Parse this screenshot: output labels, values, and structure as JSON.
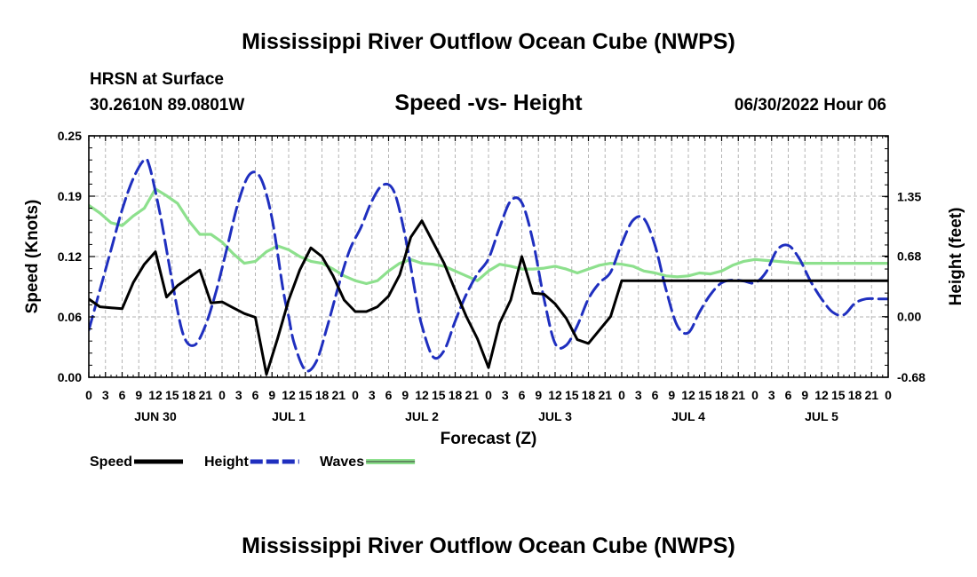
{
  "header": {
    "title": "Mississippi River Outflow Ocean Cube (NWPS)",
    "location_name": "HRSN at Surface",
    "coords": "30.2610N  89.0801W",
    "subtitle": "Speed -vs- Height",
    "datetime": "06/30/2022 Hour 06"
  },
  "footer": {
    "title": "Mississippi River Outflow Ocean Cube (NWPS)"
  },
  "chart_data": {
    "type": "line",
    "xlabel": "Forecast (Z)",
    "ylabel_left": "Speed (Knots)",
    "ylabel_right": "Height (feet)",
    "x_range_hours": [
      0,
      144
    ],
    "ylim_left": [
      0,
      0.25
    ],
    "ylim_right": [
      -0.68,
      2.03
    ],
    "left_ticks": [
      "0.00",
      "0.06",
      "0.12",
      "0.19",
      "0.25"
    ],
    "left_tick_values": [
      0,
      0.0625,
      0.125,
      0.1875,
      0.25
    ],
    "right_ticks": [
      "-0.68",
      "0.00",
      "0.68",
      "1.35"
    ],
    "right_tick_values": [
      -0.68,
      0.0,
      0.68,
      1.35
    ],
    "x_ticks": [
      "0",
      "3",
      "6",
      "9",
      "12",
      "15",
      "18",
      "21",
      "0",
      "3",
      "6",
      "9",
      "12",
      "15",
      "18",
      "21",
      "0",
      "3",
      "6",
      "9",
      "12",
      "15",
      "18",
      "21",
      "0",
      "3",
      "6",
      "9",
      "12",
      "15",
      "18",
      "21",
      "0",
      "3",
      "6",
      "9",
      "12",
      "15",
      "18",
      "21",
      "0",
      "3",
      "6",
      "9",
      "12",
      "15",
      "18",
      "21",
      "0"
    ],
    "day_labels": [
      "JUN 30",
      "JUL 1",
      "JUL 2",
      "JUL 3",
      "JUL 4",
      "JUL 5"
    ],
    "series": [
      {
        "name": "Speed",
        "axis": "left",
        "color": "#000000",
        "style": "solid",
        "x": [
          0,
          2,
          4,
          6,
          8,
          10,
          12,
          14,
          16,
          18,
          20,
          22,
          24,
          26,
          28,
          30,
          32,
          34,
          36,
          38,
          40,
          42,
          44,
          46,
          48,
          50,
          52,
          54,
          56,
          58,
          60,
          62,
          64,
          66,
          68,
          70,
          72,
          74,
          76,
          78,
          80,
          82,
          84,
          86,
          88,
          90,
          92,
          94,
          96,
          98,
          100,
          102,
          104,
          106,
          108,
          110,
          112,
          114,
          116,
          118,
          120,
          144
        ],
        "values": [
          0.081,
          0.073,
          0.072,
          0.071,
          0.098,
          0.117,
          0.13,
          0.083,
          0.095,
          0.103,
          0.111,
          0.077,
          0.078,
          0.072,
          0.066,
          0.062,
          0.003,
          0.04,
          0.08,
          0.111,
          0.134,
          0.125,
          0.105,
          0.08,
          0.068,
          0.068,
          0.073,
          0.084,
          0.106,
          0.145,
          0.162,
          0.14,
          0.118,
          0.09,
          0.063,
          0.04,
          0.01,
          0.056,
          0.08,
          0.125,
          0.087,
          0.086,
          0.076,
          0.061,
          0.039,
          0.035,
          0.049,
          0.063,
          0.1,
          0.1,
          0.1,
          0.1,
          0.1,
          0.1,
          0.1,
          0.1,
          0.1,
          0.1,
          0.1,
          0.1,
          0.1,
          0.1
        ]
      },
      {
        "name": "Height",
        "axis": "right",
        "color": "#1f2fbf",
        "style": "dashed",
        "x": [
          0,
          2,
          4,
          6,
          8,
          10,
          11,
          13,
          15,
          17,
          19,
          21,
          23,
          25,
          27,
          29,
          31,
          33,
          35,
          36,
          37,
          39,
          41,
          43,
          45,
          47,
          49,
          51,
          53,
          55,
          57,
          59,
          60,
          62,
          64,
          66,
          68,
          70,
          72,
          74,
          76,
          78,
          80,
          82,
          84,
          86,
          88,
          90,
          92,
          94,
          96,
          98,
          100,
          102,
          104,
          106,
          108,
          110,
          112,
          114,
          116,
          118,
          120,
          122,
          124,
          126,
          128,
          130,
          132,
          134,
          136,
          138,
          140,
          142,
          144
        ],
        "values": [
          -0.15,
          0.3,
          0.75,
          1.2,
          1.55,
          1.76,
          1.67,
          1.1,
          0.4,
          -0.2,
          -0.32,
          -0.1,
          0.3,
          0.8,
          1.3,
          1.6,
          1.55,
          1.1,
          0.3,
          0.0,
          -0.3,
          -0.6,
          -0.5,
          -0.1,
          0.35,
          0.75,
          1.0,
          1.3,
          1.48,
          1.4,
          0.9,
          0.2,
          -0.1,
          -0.45,
          -0.38,
          -0.05,
          0.25,
          0.48,
          0.65,
          1.0,
          1.3,
          1.28,
          0.85,
          0.2,
          -0.3,
          -0.32,
          -0.1,
          0.2,
          0.38,
          0.5,
          0.82,
          1.08,
          1.1,
          0.8,
          0.3,
          -0.1,
          -0.18,
          0.05,
          0.25,
          0.38,
          0.41,
          0.4,
          0.38,
          0.5,
          0.75,
          0.8,
          0.65,
          0.4,
          0.2,
          0.05,
          0.02,
          0.15,
          0.2,
          0.2,
          0.2
        ]
      },
      {
        "name": "Waves",
        "axis": "left",
        "color": "#8de08d",
        "style": "solid",
        "x": [
          0,
          2,
          4,
          6,
          8,
          10,
          12,
          14,
          16,
          18,
          20,
          22,
          24,
          26,
          28,
          30,
          32,
          34,
          36,
          38,
          40,
          42,
          44,
          46,
          48,
          50,
          52,
          54,
          56,
          58,
          60,
          62,
          64,
          66,
          68,
          70,
          72,
          74,
          76,
          78,
          80,
          82,
          84,
          86,
          88,
          90,
          92,
          94,
          96,
          98,
          100,
          102,
          104,
          106,
          108,
          110,
          112,
          114,
          116,
          118,
          120,
          122,
          124,
          126,
          128,
          130,
          132,
          134,
          136,
          138,
          140,
          142,
          144
        ],
        "values": [
          0.178,
          0.17,
          0.16,
          0.157,
          0.167,
          0.175,
          0.195,
          0.188,
          0.18,
          0.162,
          0.148,
          0.148,
          0.14,
          0.128,
          0.118,
          0.12,
          0.13,
          0.136,
          0.132,
          0.125,
          0.12,
          0.118,
          0.112,
          0.105,
          0.1,
          0.097,
          0.1,
          0.11,
          0.118,
          0.122,
          0.118,
          0.117,
          0.115,
          0.11,
          0.105,
          0.1,
          0.11,
          0.117,
          0.115,
          0.112,
          0.112,
          0.113,
          0.115,
          0.112,
          0.108,
          0.112,
          0.116,
          0.118,
          0.117,
          0.115,
          0.11,
          0.108,
          0.105,
          0.104,
          0.105,
          0.108,
          0.107,
          0.11,
          0.116,
          0.12,
          0.122,
          0.121,
          0.12,
          0.119,
          0.118,
          0.118,
          0.118,
          0.118,
          0.118,
          0.118,
          0.118,
          0.118,
          0.118
        ]
      }
    ],
    "legend": [
      {
        "label": "Speed",
        "color": "#000000",
        "style": "solid"
      },
      {
        "label": "Height",
        "color": "#1f2fbf",
        "style": "dashed"
      },
      {
        "label": "Waves",
        "color": "#8de08d",
        "style": "solid-outlined"
      }
    ]
  }
}
